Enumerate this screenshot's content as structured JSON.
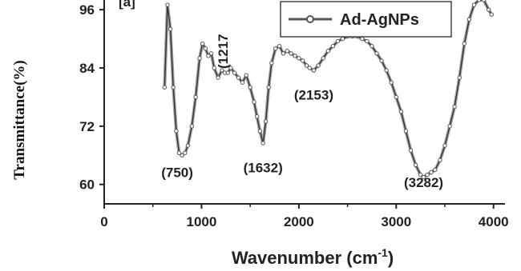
{
  "chart_data": {
    "type": "line",
    "xlabel": "Wavenumber (cm",
    "xlabel_superscript": "-1",
    "xlabel_suffix": ")",
    "ylabel": "Transmittance(%)",
    "xlim": [
      0,
      4200
    ],
    "ylim": [
      56,
      98
    ],
    "xticks": [
      0,
      1000,
      2000,
      3000,
      4000
    ],
    "yticks": [
      60,
      72,
      84,
      96
    ],
    "panel_tag": "[a]",
    "grid": false,
    "legend_position": "top-right",
    "line_color": "#555555",
    "series": [
      {
        "name": "Ad-AgNPs",
        "x": [
          620,
          650,
          680,
          710,
          740,
          770,
          800,
          830,
          860,
          900,
          940,
          980,
          1010,
          1040,
          1070,
          1100,
          1130,
          1170,
          1210,
          1240,
          1270,
          1300,
          1340,
          1380,
          1420,
          1460,
          1500,
          1540,
          1570,
          1600,
          1632,
          1660,
          1690,
          1720,
          1760,
          1800,
          1840,
          1880,
          1920,
          1960,
          2000,
          2040,
          2080,
          2110,
          2153,
          2200,
          2250,
          2300,
          2350,
          2400,
          2450,
          2500,
          2550,
          2600,
          2650,
          2700,
          2750,
          2800,
          2850,
          2900,
          2950,
          3000,
          3050,
          3100,
          3150,
          3200,
          3250,
          3282,
          3320,
          3360,
          3400,
          3450,
          3500,
          3550,
          3600,
          3650,
          3700,
          3750,
          3800,
          3850,
          3900,
          3950,
          3980
        ],
        "y": [
          80,
          97,
          92,
          80,
          71,
          66.5,
          66,
          66.5,
          68,
          72,
          78,
          86,
          89,
          88,
          86.5,
          87,
          84,
          82,
          83.5,
          83,
          83,
          84,
          83,
          82,
          81,
          82.5,
          80,
          77,
          74,
          71,
          68.5,
          73,
          80,
          85,
          88,
          88.5,
          87,
          87.5,
          87,
          86.5,
          86,
          85.5,
          84.5,
          84,
          83.5,
          84.5,
          86,
          87.5,
          88.5,
          89.5,
          90,
          90.5,
          90.5,
          90.5,
          90,
          89.5,
          88.5,
          87,
          85.5,
          83.5,
          81,
          78,
          75,
          71,
          67,
          64,
          62,
          61.5,
          62,
          62.5,
          63,
          65,
          68,
          72,
          76,
          82,
          89,
          94,
          97,
          98,
          98,
          96,
          95
        ]
      }
    ],
    "annotations": [
      {
        "label": "(750)",
        "x": 750,
        "y": 61.5
      },
      {
        "label": "(1632)",
        "x": 1632,
        "y": 62.5
      },
      {
        "label": "(2153)",
        "x": 2153,
        "y": 77.5
      },
      {
        "label": "(3282)",
        "x": 3282,
        "y": 59.5
      },
      {
        "label": "(1217",
        "x": 1217,
        "y": 91,
        "rotated": true
      }
    ]
  }
}
